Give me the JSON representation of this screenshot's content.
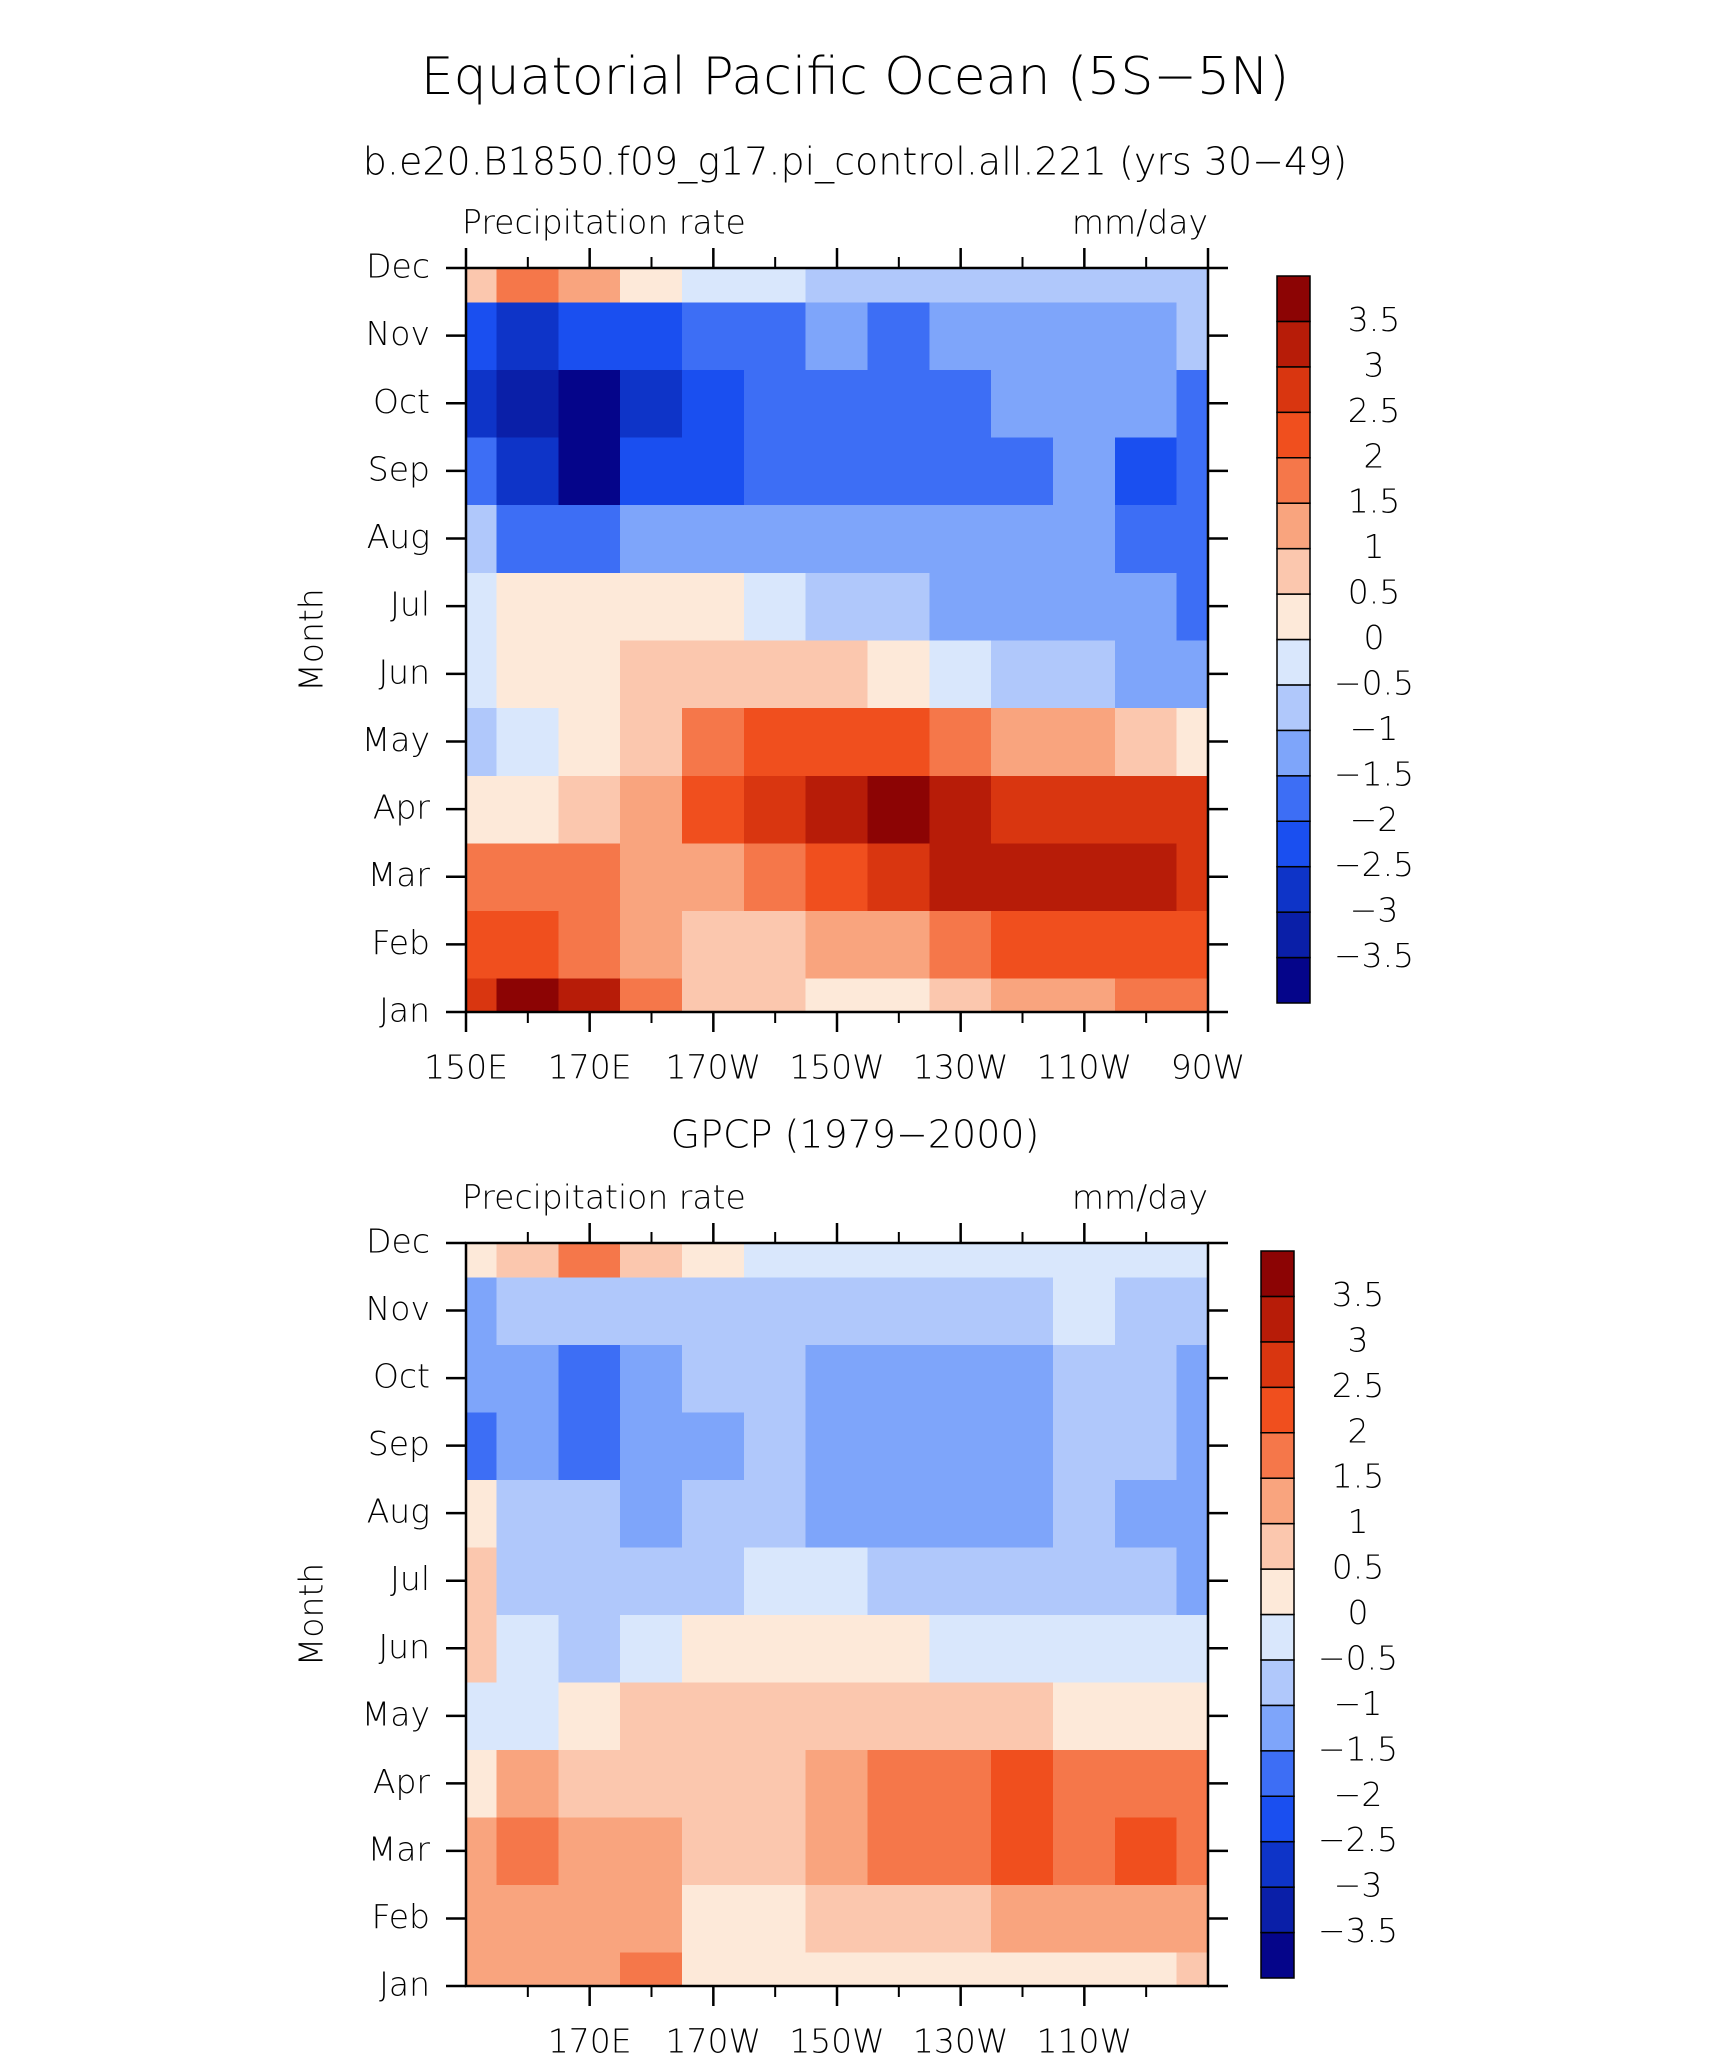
{
  "title": "Equatorial Pacific Ocean (5S−5N)",
  "chart_data": [
    {
      "type": "contour",
      "title": "b.e20.B1850.f09_g17.pi_control.all.221 (yrs 30−49)",
      "left_label": "Precipitation rate",
      "right_label": "mm/day",
      "ylabel": "Month",
      "categories": [
        "Jan",
        "Feb",
        "Mar",
        "Apr",
        "May",
        "Jun",
        "Jul",
        "Aug",
        "Sep",
        "Oct",
        "Nov",
        "Dec"
      ],
      "x": [
        150,
        160,
        170,
        180,
        190,
        200,
        210,
        220,
        230,
        240,
        250,
        260,
        270
      ],
      "xlim": [
        150,
        270
      ],
      "xticks": [
        {
          "value": 150,
          "label": "150E"
        },
        {
          "value": 170,
          "label": "170E"
        },
        {
          "value": 190,
          "label": "170W"
        },
        {
          "value": 210,
          "label": "150W"
        },
        {
          "value": 230,
          "label": "130W"
        },
        {
          "value": 250,
          "label": "110W"
        },
        {
          "value": 270,
          "label": "90W"
        }
      ],
      "xminorticks": [
        160,
        180,
        200,
        220,
        240,
        260
      ],
      "values": [
        [
          2.5,
          3.8,
          3.0,
          1.5,
          0.8,
          0.6,
          0.2,
          0.3,
          0.5,
          1.0,
          1.3,
          1.5,
          1.8
        ],
        [
          2.2,
          2.0,
          1.8,
          1.2,
          0.8,
          0.8,
          1.0,
          1.4,
          1.8,
          2.0,
          2.2,
          2.3,
          2.4
        ],
        [
          1.8,
          1.6,
          1.8,
          1.2,
          1.4,
          1.8,
          2.3,
          2.7,
          3.0,
          3.0,
          3.2,
          3.0,
          2.8
        ],
        [
          0.0,
          0.4,
          0.8,
          1.2,
          2.0,
          2.8,
          3.4,
          3.6,
          3.3,
          2.8,
          2.6,
          2.6,
          2.5
        ],
        [
          -0.8,
          -0.2,
          0.2,
          0.8,
          1.8,
          2.2,
          2.2,
          2.0,
          1.8,
          1.4,
          1.2,
          0.8,
          0.2
        ],
        [
          -0.4,
          0.2,
          0.3,
          0.6,
          0.8,
          0.8,
          0.7,
          0.2,
          -0.3,
          -0.7,
          -1.0,
          -1.1,
          -1.2
        ],
        [
          -0.2,
          0.3,
          0.2,
          0.4,
          0.2,
          -0.2,
          -0.6,
          -0.9,
          -1.1,
          -1.3,
          -1.4,
          -1.5,
          -1.8
        ],
        [
          -0.6,
          -1.8,
          -1.7,
          -1.4,
          -1.2,
          -1.3,
          -1.4,
          -1.4,
          -1.5,
          -1.4,
          -1.3,
          -2.0,
          -1.8
        ],
        [
          -1.8,
          -3.0,
          -3.6,
          -2.5,
          -2.2,
          -1.8,
          -1.6,
          -1.8,
          -1.9,
          -1.6,
          -1.4,
          -2.1,
          -2.0
        ],
        [
          -2.8,
          -3.2,
          -3.6,
          -2.6,
          -2.2,
          -2.0,
          -1.8,
          -1.9,
          -1.8,
          -1.4,
          -1.3,
          -1.4,
          -1.8
        ],
        [
          -2.2,
          -2.6,
          -2.4,
          -2.2,
          -2.0,
          -1.6,
          -1.5,
          -1.6,
          -1.4,
          -1.2,
          -1.1,
          -1.1,
          -1.0
        ],
        [
          0.5,
          1.8,
          1.0,
          0.0,
          -0.3,
          -0.5,
          -0.6,
          -0.6,
          -0.7,
          -0.8,
          -0.8,
          -0.9,
          -0.9
        ]
      ],
      "levels": [
        {
          "value": -3.5,
          "label": "−3.5"
        },
        {
          "value": -3,
          "label": "−3"
        },
        {
          "value": -2.5,
          "label": "−2.5"
        },
        {
          "value": -2,
          "label": "−2"
        },
        {
          "value": -1.5,
          "label": "−1.5"
        },
        {
          "value": -1,
          "label": "−1"
        },
        {
          "value": -0.5,
          "label": "−0.5"
        },
        0,
        0.5,
        1,
        1.5,
        2,
        2.5,
        3,
        3.5
      ],
      "colors": [
        "#05058a",
        "#0a1fa8",
        "#0e34c8",
        "#1a4ff0",
        "#3d6ef5",
        "#7ea5fa",
        "#b0c8fb",
        "#d9e7fc",
        "#fde9d9",
        "#fbc7ae",
        "#f9a47e",
        "#f5774a",
        "#f04f1e",
        "#d93610",
        "#b71c08",
        "#8c0404"
      ]
    },
    {
      "type": "contour",
      "title": "GPCP (1979−2000)",
      "left_label": "Precipitation rate",
      "right_label": "mm/day",
      "ylabel": "Month",
      "categories": [
        "Jan",
        "Feb",
        "Mar",
        "Apr",
        "May",
        "Jun",
        "Jul",
        "Aug",
        "Sep",
        "Oct",
        "Nov",
        "Dec"
      ],
      "x": [
        150,
        160,
        170,
        180,
        190,
        200,
        210,
        220,
        230,
        240,
        250,
        260,
        270
      ],
      "xlim": [
        150,
        270
      ],
      "xticks": [
        {
          "value": 170,
          "label": "170E"
        },
        {
          "value": 190,
          "label": "170W"
        },
        {
          "value": 210,
          "label": "150W"
        },
        {
          "value": 230,
          "label": "130W"
        },
        {
          "value": 250,
          "label": "110W"
        }
      ],
      "xminorticks": [
        160,
        180,
        200,
        220,
        240,
        260
      ],
      "values": [
        [
          1.2,
          1.0,
          1.4,
          1.8,
          0.4,
          0.2,
          0.2,
          0.2,
          0.2,
          0.2,
          0.3,
          0.3,
          0.5
        ],
        [
          1.2,
          1.4,
          1.0,
          1.2,
          0.3,
          0.4,
          0.6,
          0.8,
          0.9,
          1.0,
          1.1,
          1.2,
          1.4
        ],
        [
          1.0,
          1.6,
          1.2,
          1.2,
          0.6,
          0.8,
          1.2,
          1.5,
          1.8,
          2.0,
          1.6,
          2.0,
          1.6
        ],
        [
          0.3,
          1.2,
          0.8,
          0.5,
          0.6,
          0.9,
          1.4,
          1.7,
          1.8,
          2.0,
          1.7,
          1.9,
          1.6
        ],
        [
          -0.3,
          -0.2,
          0.4,
          0.5,
          0.6,
          0.8,
          0.9,
          0.8,
          0.7,
          0.6,
          0.4,
          0.2,
          0.1
        ],
        [
          0.6,
          -0.4,
          -0.7,
          -0.3,
          0.2,
          0.3,
          0.2,
          0.0,
          -0.3,
          -0.4,
          -0.5,
          -0.4,
          -0.3
        ],
        [
          0.6,
          -0.6,
          -0.8,
          -0.9,
          -0.6,
          -0.3,
          -0.5,
          -0.8,
          -0.8,
          -0.8,
          -0.9,
          -1.0,
          -1.2
        ],
        [
          0.3,
          -0.8,
          -1.0,
          -1.1,
          -0.9,
          -0.8,
          -1.1,
          -1.2,
          -1.2,
          -1.1,
          -0.8,
          -1.2,
          -1.4
        ],
        [
          -1.6,
          -1.2,
          -1.8,
          -1.4,
          -1.1,
          -0.9,
          -1.2,
          -1.3,
          -1.3,
          -1.2,
          -0.8,
          -1.0,
          -1.3
        ],
        [
          -1.2,
          -1.4,
          -1.6,
          -1.2,
          -1.0,
          -0.9,
          -1.1,
          -1.2,
          -1.2,
          -1.1,
          -0.8,
          -0.9,
          -1.2
        ],
        [
          -1.2,
          -0.8,
          -0.7,
          -0.8,
          -0.7,
          -0.6,
          -0.6,
          -0.7,
          -0.6,
          -0.6,
          -0.5,
          -0.6,
          -0.6
        ],
        [
          0.0,
          0.8,
          1.6,
          0.8,
          0.3,
          -0.2,
          -0.3,
          -0.4,
          -0.5,
          -0.4,
          -0.4,
          -0.4,
          -0.4
        ]
      ],
      "levels": [
        {
          "value": -3.5,
          "label": "−3.5"
        },
        {
          "value": -3,
          "label": "−3"
        },
        {
          "value": -2.5,
          "label": "−2.5"
        },
        {
          "value": -2,
          "label": "−2"
        },
        {
          "value": -1.5,
          "label": "−1.5"
        },
        {
          "value": -1,
          "label": "−1"
        },
        {
          "value": -0.5,
          "label": "−0.5"
        },
        0,
        0.5,
        1,
        1.5,
        2,
        2.5,
        3,
        3.5
      ],
      "colors": [
        "#05058a",
        "#0a1fa8",
        "#0e34c8",
        "#1a4ff0",
        "#3d6ef5",
        "#7ea5fa",
        "#b0c8fb",
        "#d9e7fc",
        "#fde9d9",
        "#fbc7ae",
        "#f9a47e",
        "#f5774a",
        "#f04f1e",
        "#d93610",
        "#b71c08",
        "#8c0404"
      ]
    }
  ]
}
